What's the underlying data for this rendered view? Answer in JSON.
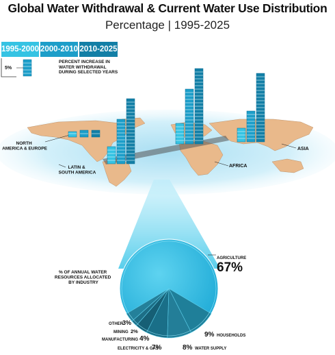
{
  "title": "Global Water Withdrawal & Current Water Use Distribution",
  "subtitle": "Percentage | 1995-2025",
  "legend": {
    "scale_label": "5%",
    "description": "PERCENT INCREASE IN WATER WITHDRAWAL DURING SELECTED YEARS"
  },
  "pie_heading": "% OF ANNUAL WATER RESOURCES ALLOCATED BY INDUSTRY",
  "colors": {
    "p1": "#35c3e3",
    "p2": "#1d9ec9",
    "p3": "#137fa6",
    "land": "#e9b98b",
    "sea": "#c9ecf7",
    "pie": "#3ac3e6"
  },
  "chart_data": [
    {
      "type": "bar",
      "title": "PERCENT INCREASE IN WATER WITHDRAWAL DURING SELECTED YEARS",
      "unit": "%",
      "categories": [
        "NORTH AMERICA & EUROPE",
        "LATIN & SOUTH AMERICA",
        "AFRICA",
        "ASIA"
      ],
      "series": [
        {
          "name": "1995-2000",
          "values": [
            8,
            25,
            30,
            20
          ]
        },
        {
          "name": "2000-2010",
          "values": [
            10,
            65,
            80,
            45
          ]
        },
        {
          "name": "2010-2025",
          "values": [
            10,
            95,
            110,
            100
          ]
        }
      ]
    },
    {
      "type": "pie",
      "title": "% OF ANNUAL WATER RESOURCES ALLOCATED BY INDUSTRY",
      "slices": [
        {
          "label": "AGRICULTURE",
          "value": 67
        },
        {
          "label": "HOUSEHOLDS",
          "value": 9
        },
        {
          "label": "WATER SUPPLY",
          "value": 8
        },
        {
          "label": "ELECTRICITY & GAS",
          "value": 7
        },
        {
          "label": "MANUFACTURING",
          "value": 4
        },
        {
          "label": "MINING",
          "value": 2
        },
        {
          "label": "OTHER",
          "value": 3
        }
      ]
    }
  ]
}
